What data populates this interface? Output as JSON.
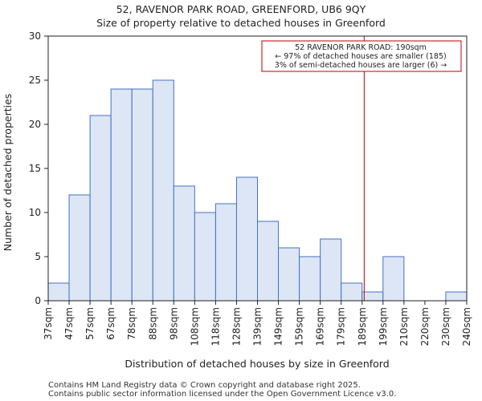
{
  "chart_data": {
    "type": "histogram",
    "title": "52, RAVENOR PARK ROAD, GREENFORD, UB6 9QY",
    "subtitle": "Size of property relative to detached houses in Greenford",
    "xlabel": "Distribution of detached houses by size in Greenford",
    "ylabel": "Number of detached properties",
    "categories": [
      "37sqm",
      "47sqm",
      "57sqm",
      "67sqm",
      "78sqm",
      "88sqm",
      "98sqm",
      "108sqm",
      "118sqm",
      "128sqm",
      "139sqm",
      "149sqm",
      "159sqm",
      "169sqm",
      "179sqm",
      "189sqm",
      "199sqm",
      "210sqm",
      "220sqm",
      "230sqm",
      "240sqm"
    ],
    "values": [
      2,
      12,
      21,
      24,
      24,
      25,
      13,
      10,
      11,
      14,
      9,
      6,
      5,
      7,
      2,
      1,
      5,
      0,
      0,
      1
    ],
    "ylim": [
      0,
      30
    ],
    "yticks": [
      0,
      5,
      10,
      15,
      20,
      25,
      30
    ],
    "bar_color": "#dce6f5",
    "bar_edge_color": "#4472c4",
    "marker": {
      "value_sqm": 190,
      "color": "#c00000"
    },
    "annotation": {
      "line1": "52 RAVENOR PARK ROAD: 190sqm",
      "line2": "← 97% of detached houses are smaller (185)",
      "line3": "3% of semi-detached houses are larger (6) →"
    }
  },
  "footer": {
    "line1": "Contains HM Land Registry data © Crown copyright and database right 2025.",
    "line2": "Contains public sector information licensed under the Open Government Licence v3.0."
  }
}
